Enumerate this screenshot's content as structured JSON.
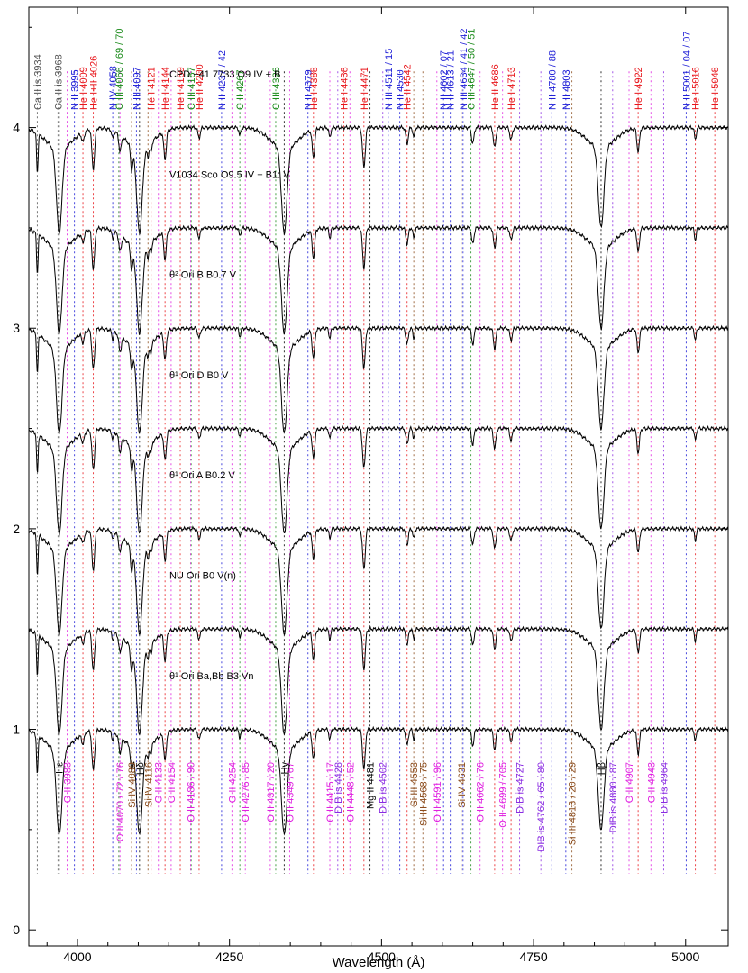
{
  "chart_data": {
    "type": "line",
    "xlabel": "Wavelength (Å)",
    "ylabel": "",
    "xlim": [
      3920,
      5070
    ],
    "ylim": [
      -0.08,
      4.6
    ],
    "x_ticks": [
      4000,
      4250,
      4500,
      4750,
      5000
    ],
    "y_ticks": [
      0,
      1,
      2,
      3,
      4
    ],
    "colors": {
      "grey": "#555555",
      "red": "#e8161b",
      "blue": "#1b1bd6",
      "green": "#1a8a1a",
      "magenta": "#e020e0",
      "brown": "#8a4a1a",
      "purple": "#8a2be2",
      "black": "#000000"
    },
    "series": [
      {
        "name": "CPD −41 7733   O9 IV + B",
        "offset": 4.0,
        "label_x": 4040
      },
      {
        "name": "V1034 Sco   O9.5 IV + B1: V",
        "offset": 3.5,
        "label_x": 4040
      },
      {
        "name": "θ² Ori B   B0.7 V",
        "offset": 3.0,
        "label_x": 4040
      },
      {
        "name": "θ¹ Ori D   B0 V",
        "offset": 2.5,
        "label_x": 4040
      },
      {
        "name": "θ¹ Ori A   B0.2 V",
        "offset": 2.0,
        "label_x": 4040
      },
      {
        "name": "NU Ori   B0 V(n)",
        "offset": 1.5,
        "label_x": 4040
      },
      {
        "name": "θ¹ Ori Ba,Bb   B3 Vn",
        "offset": 1.0,
        "label_x": 4040
      }
    ],
    "top_labels": [
      {
        "text": "Ca II is 3934",
        "x": 3934,
        "color": "grey"
      },
      {
        "text": "Ca II is 3968",
        "x": 3968,
        "color": "grey"
      },
      {
        "text": "N II 3995",
        "x": 3995,
        "color": "blue"
      },
      {
        "text": "He I 4009",
        "x": 4009,
        "color": "red"
      },
      {
        "text": "He I+II 4026",
        "x": 4026,
        "color": "red"
      },
      {
        "text": "N IV 4058",
        "x": 4058,
        "color": "blue"
      },
      {
        "text": "C III 4068 / 69 / 70",
        "x": 4068,
        "color": "green"
      },
      {
        "text": "N III 4097",
        "x": 4097,
        "color": "blue"
      },
      {
        "text": "He I 4121",
        "x": 4121,
        "color": "red"
      },
      {
        "text": "He I 4144",
        "x": 4144,
        "color": "red"
      },
      {
        "text": "He I 4169",
        "x": 4169,
        "color": "red"
      },
      {
        "text": "C III 4187",
        "x": 4187,
        "color": "green"
      },
      {
        "text": "He II 4200",
        "x": 4200,
        "color": "red"
      },
      {
        "text": "N II 4237 / 42",
        "x": 4237,
        "color": "blue"
      },
      {
        "text": "C II 4267",
        "x": 4267,
        "color": "green"
      },
      {
        "text": "C III 4326",
        "x": 4326,
        "color": "green"
      },
      {
        "text": "N II 4379",
        "x": 4379,
        "color": "blue"
      },
      {
        "text": "He I 4388",
        "x": 4388,
        "color": "red"
      },
      {
        "text": "He I 4438",
        "x": 4438,
        "color": "red"
      },
      {
        "text": "He I 4471",
        "x": 4471,
        "color": "red"
      },
      {
        "text": "N III 4511 / 15",
        "x": 4511,
        "color": "blue"
      },
      {
        "text": "N II 4530",
        "x": 4530,
        "color": "blue"
      },
      {
        "text": "He II 4542",
        "x": 4542,
        "color": "red"
      },
      {
        "text": "N II 4602 / 07",
        "x": 4602,
        "color": "blue"
      },
      {
        "text": "N II 4613 / 21",
        "x": 4613,
        "color": "blue"
      },
      {
        "text": "N III 4634 / 41 / 42",
        "x": 4634,
        "color": "blue"
      },
      {
        "text": "C III 4647 / 50 / 51",
        "x": 4647,
        "color": "green"
      },
      {
        "text": "He II 4686",
        "x": 4686,
        "color": "red"
      },
      {
        "text": "He I 4713",
        "x": 4713,
        "color": "red"
      },
      {
        "text": "N II 4780 / 88",
        "x": 4780,
        "color": "blue"
      },
      {
        "text": "N II 4803",
        "x": 4803,
        "color": "blue"
      },
      {
        "text": "He I 4922",
        "x": 4922,
        "color": "red"
      },
      {
        "text": "N II 5001 / 04 / 07",
        "x": 5001,
        "color": "blue"
      },
      {
        "text": "He I 5016",
        "x": 5016,
        "color": "red"
      },
      {
        "text": "He I 5048",
        "x": 5048,
        "color": "red"
      }
    ],
    "bottom_labels": [
      {
        "text": "Hε",
        "x": 3970,
        "color": "black"
      },
      {
        "text": "O II 3983",
        "x": 3983,
        "color": "magenta"
      },
      {
        "text": "O II 4070 / 72 / 76",
        "x": 4070,
        "color": "magenta"
      },
      {
        "text": "Si IV 4089",
        "x": 4089,
        "color": "brown"
      },
      {
        "text": "Hδ",
        "x": 4102,
        "color": "black"
      },
      {
        "text": "Si IV 4116",
        "x": 4116,
        "color": "brown"
      },
      {
        "text": "O II 4133",
        "x": 4133,
        "color": "magenta"
      },
      {
        "text": "O II 4154",
        "x": 4154,
        "color": "magenta"
      },
      {
        "text": "O II 4186 / 90",
        "x": 4186,
        "color": "magenta"
      },
      {
        "text": "O II 4254",
        "x": 4254,
        "color": "magenta"
      },
      {
        "text": "O II 4276 / 85",
        "x": 4276,
        "color": "magenta"
      },
      {
        "text": "O II 4317 / 20",
        "x": 4317,
        "color": "magenta"
      },
      {
        "text": "Hγ",
        "x": 4340,
        "color": "black"
      },
      {
        "text": "O II 4349 / 67",
        "x": 4349,
        "color": "magenta"
      },
      {
        "text": "O II 4415 / 17",
        "x": 4415,
        "color": "magenta"
      },
      {
        "text": "DIB is 4428",
        "x": 4428,
        "color": "purple"
      },
      {
        "text": "O II 4448 / 52",
        "x": 4448,
        "color": "magenta"
      },
      {
        "text": "Mg II 4481",
        "x": 4481,
        "color": "black"
      },
      {
        "text": "DIB is 4502",
        "x": 4502,
        "color": "purple"
      },
      {
        "text": "Si III 4553",
        "x": 4553,
        "color": "brown"
      },
      {
        "text": "Si III 4568 / 75",
        "x": 4568,
        "color": "brown"
      },
      {
        "text": "O II 4591 / 96",
        "x": 4591,
        "color": "magenta"
      },
      {
        "text": "Si IV 4631",
        "x": 4631,
        "color": "brown"
      },
      {
        "text": "O II 4662 / 76",
        "x": 4662,
        "color": "magenta"
      },
      {
        "text": "O II 4699 / 705",
        "x": 4699,
        "color": "magenta"
      },
      {
        "text": "DIB is 4727",
        "x": 4727,
        "color": "purple"
      },
      {
        "text": "DIB is 4762 / 65 / 80",
        "x": 4762,
        "color": "purple"
      },
      {
        "text": "Si III 4813 / 20 / 29",
        "x": 4813,
        "color": "brown"
      },
      {
        "text": "Hβ",
        "x": 4861,
        "color": "black"
      },
      {
        "text": "DIB is 4880 / 87",
        "x": 4880,
        "color": "purple"
      },
      {
        "text": "O II 4907",
        "x": 4907,
        "color": "magenta"
      },
      {
        "text": "O II 4943",
        "x": 4943,
        "color": "magenta"
      },
      {
        "text": "DIB is 4964",
        "x": 4964,
        "color": "purple"
      }
    ],
    "absorption_lines": [
      {
        "x": 3934,
        "depth": 0.2,
        "width": 1.2
      },
      {
        "x": 3970,
        "depth": 0.42,
        "width": 4.5
      },
      {
        "x": 4009,
        "depth": 0.05,
        "width": 2
      },
      {
        "x": 4026,
        "depth": 0.2,
        "width": 2.2
      },
      {
        "x": 4058,
        "depth": 0.04,
        "width": 1.5
      },
      {
        "x": 4070,
        "depth": 0.08,
        "width": 2
      },
      {
        "x": 4089,
        "depth": 0.12,
        "width": 1.8
      },
      {
        "x": 4102,
        "depth": 0.42,
        "width": 4.5
      },
      {
        "x": 4116,
        "depth": 0.06,
        "width": 1.5
      },
      {
        "x": 4121,
        "depth": 0.05,
        "width": 1.5
      },
      {
        "x": 4144,
        "depth": 0.14,
        "width": 2
      },
      {
        "x": 4200,
        "depth": 0.05,
        "width": 2
      },
      {
        "x": 4267,
        "depth": 0.04,
        "width": 1.5
      },
      {
        "x": 4340,
        "depth": 0.42,
        "width": 4.5
      },
      {
        "x": 4388,
        "depth": 0.14,
        "width": 2
      },
      {
        "x": 4415,
        "depth": 0.05,
        "width": 1.5
      },
      {
        "x": 4471,
        "depth": 0.2,
        "width": 2.2
      },
      {
        "x": 4542,
        "depth": 0.08,
        "width": 2
      },
      {
        "x": 4553,
        "depth": 0.05,
        "width": 1.5
      },
      {
        "x": 4650,
        "depth": 0.08,
        "width": 2
      },
      {
        "x": 4686,
        "depth": 0.1,
        "width": 2
      },
      {
        "x": 4713,
        "depth": 0.06,
        "width": 2
      },
      {
        "x": 4861,
        "depth": 0.4,
        "width": 4.5
      },
      {
        "x": 4922,
        "depth": 0.12,
        "width": 2
      },
      {
        "x": 5016,
        "depth": 0.06,
        "width": 1.5
      }
    ]
  }
}
